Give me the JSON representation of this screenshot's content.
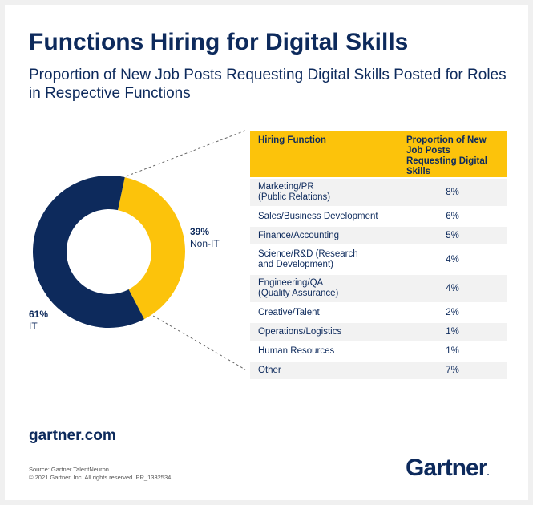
{
  "title": "Functions Hiring for Digital Skills",
  "subtitle": "Proportion of New Job Posts Requesting Digital Skills Posted for Roles in Respective Functions",
  "colors": {
    "navy": "#0d2a5c",
    "gold": "#fcc30b"
  },
  "chart_data": [
    {
      "type": "pie",
      "donut": true,
      "slices": [
        {
          "label": "Non-IT",
          "pct_label": "39%",
          "value": 39,
          "color": "#fcc30b"
        },
        {
          "label": "IT",
          "pct_label": "61%",
          "value": 61,
          "color": "#0d2a5c"
        }
      ]
    },
    {
      "type": "table",
      "headers": [
        "Hiring Function",
        "Proportion of New Job Posts Requesting Digital Skills"
      ],
      "rows": [
        {
          "lines": [
            "Marketing/PR",
            "(Public Relations)"
          ],
          "value": "8%"
        },
        {
          "lines": [
            "Sales/Business Development"
          ],
          "value": "6%"
        },
        {
          "lines": [
            "Finance/Accounting"
          ],
          "value": "5%"
        },
        {
          "lines": [
            "Science/R&D (Research",
            "and Development)"
          ],
          "value": "4%"
        },
        {
          "lines": [
            "Engineering/QA",
            "(Quality Assurance)"
          ],
          "value": "4%"
        },
        {
          "lines": [
            "Creative/Talent"
          ],
          "value": "2%"
        },
        {
          "lines": [
            "Operations/Logistics"
          ],
          "value": "1%"
        },
        {
          "lines": [
            "Human Resources"
          ],
          "value": "1%"
        },
        {
          "lines": [
            "Other"
          ],
          "value": "7%"
        }
      ]
    }
  ],
  "footer": {
    "site": "gartner.com",
    "source": "Source: Gartner TalentNeuron",
    "copyright": "© 2021 Gartner, Inc. All rights reserved. PR_1332534",
    "logo": "Gartner",
    "logo_dot": "."
  }
}
